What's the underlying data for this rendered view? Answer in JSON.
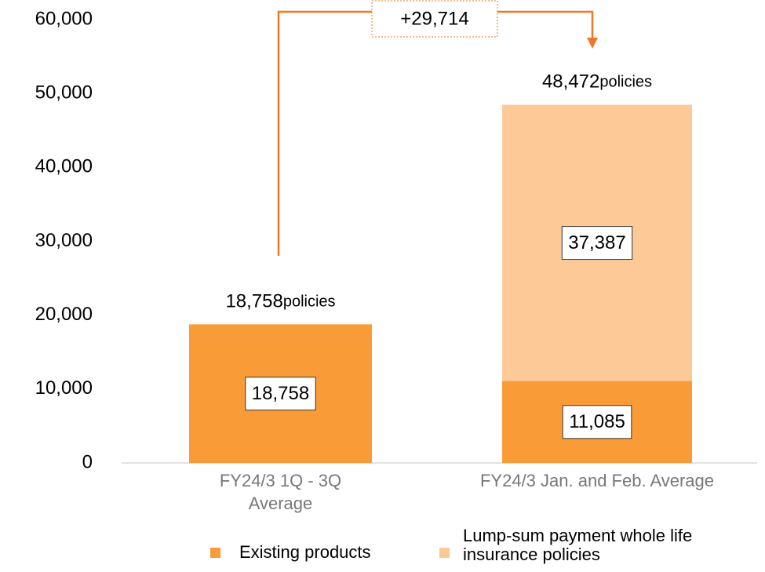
{
  "chart_data": {
    "type": "stacked-bar",
    "categories": [
      "FY24/3 1Q - 3Q Average",
      "FY24/3 Jan. and Feb. Average"
    ],
    "series": [
      {
        "name": "Existing products",
        "color": "#F99C38",
        "values": [
          18758,
          11085
        ],
        "value_labels": [
          "18,758",
          "11,085"
        ]
      },
      {
        "name": "Lump-sum payment whole life insurance policies",
        "color": "#FCC997",
        "values": [
          null,
          37387
        ],
        "value_labels": [
          null,
          "37,387"
        ]
      }
    ],
    "totals": [
      {
        "value": 18758,
        "label": "18,758"
      },
      {
        "value": 48472,
        "label": "48,472"
      }
    ],
    "total_unit": "policies",
    "annotation": {
      "value": 29714,
      "label": "+29,714"
    },
    "ylim": [
      0,
      60000
    ],
    "yticks": [
      {
        "value": 0,
        "label": "0"
      },
      {
        "value": 10000,
        "label": "10,000"
      },
      {
        "value": 20000,
        "label": "20,000"
      },
      {
        "value": 30000,
        "label": "30,000"
      },
      {
        "value": 40000,
        "label": "40,000"
      },
      {
        "value": 50000,
        "label": "50,000"
      },
      {
        "value": 60000,
        "label": "60,000"
      }
    ],
    "grid": false
  }
}
